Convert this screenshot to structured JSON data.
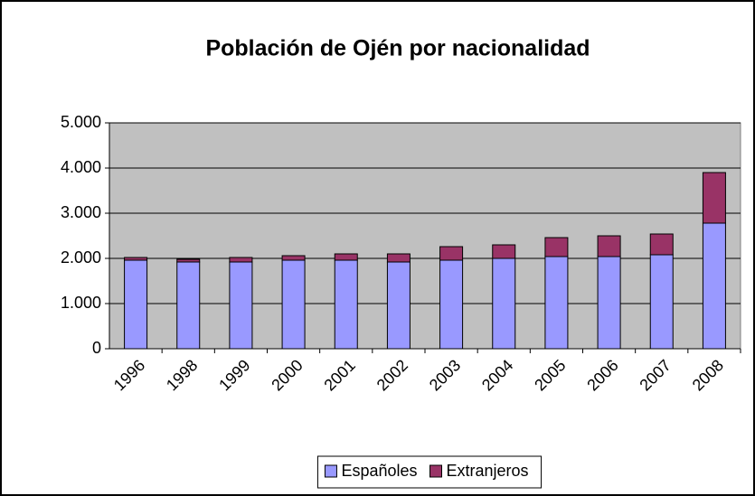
{
  "chart_data": {
    "type": "stacked_bar",
    "title": "Población de Ojén por nacionalidad",
    "categories": [
      "1996",
      "1998",
      "1999",
      "2000",
      "2001",
      "2002",
      "2003",
      "2004",
      "2005",
      "2006",
      "2007",
      "2008"
    ],
    "series": [
      {
        "name": "Españoles",
        "color": "#9999ff",
        "values": [
          1960,
          1920,
          1920,
          1960,
          1960,
          1920,
          1960,
          2000,
          2040,
          2040,
          2080,
          2780
        ]
      },
      {
        "name": "Extranjeros",
        "color": "#993366",
        "values": [
          60,
          60,
          100,
          100,
          140,
          180,
          300,
          300,
          420,
          460,
          460,
          1120
        ]
      }
    ],
    "ylim": [
      0,
      5000
    ],
    "yticks": [
      0,
      {
        "value": 1000,
        "label": "1.000"
      },
      {
        "value": 2000,
        "label": "2.000"
      },
      {
        "value": 3000,
        "label": "3.000"
      },
      {
        "value": 4000,
        "label": "4.000"
      },
      {
        "value": 5000,
        "label": "5.000"
      }
    ],
    "grid": true,
    "legend": "bottom"
  }
}
